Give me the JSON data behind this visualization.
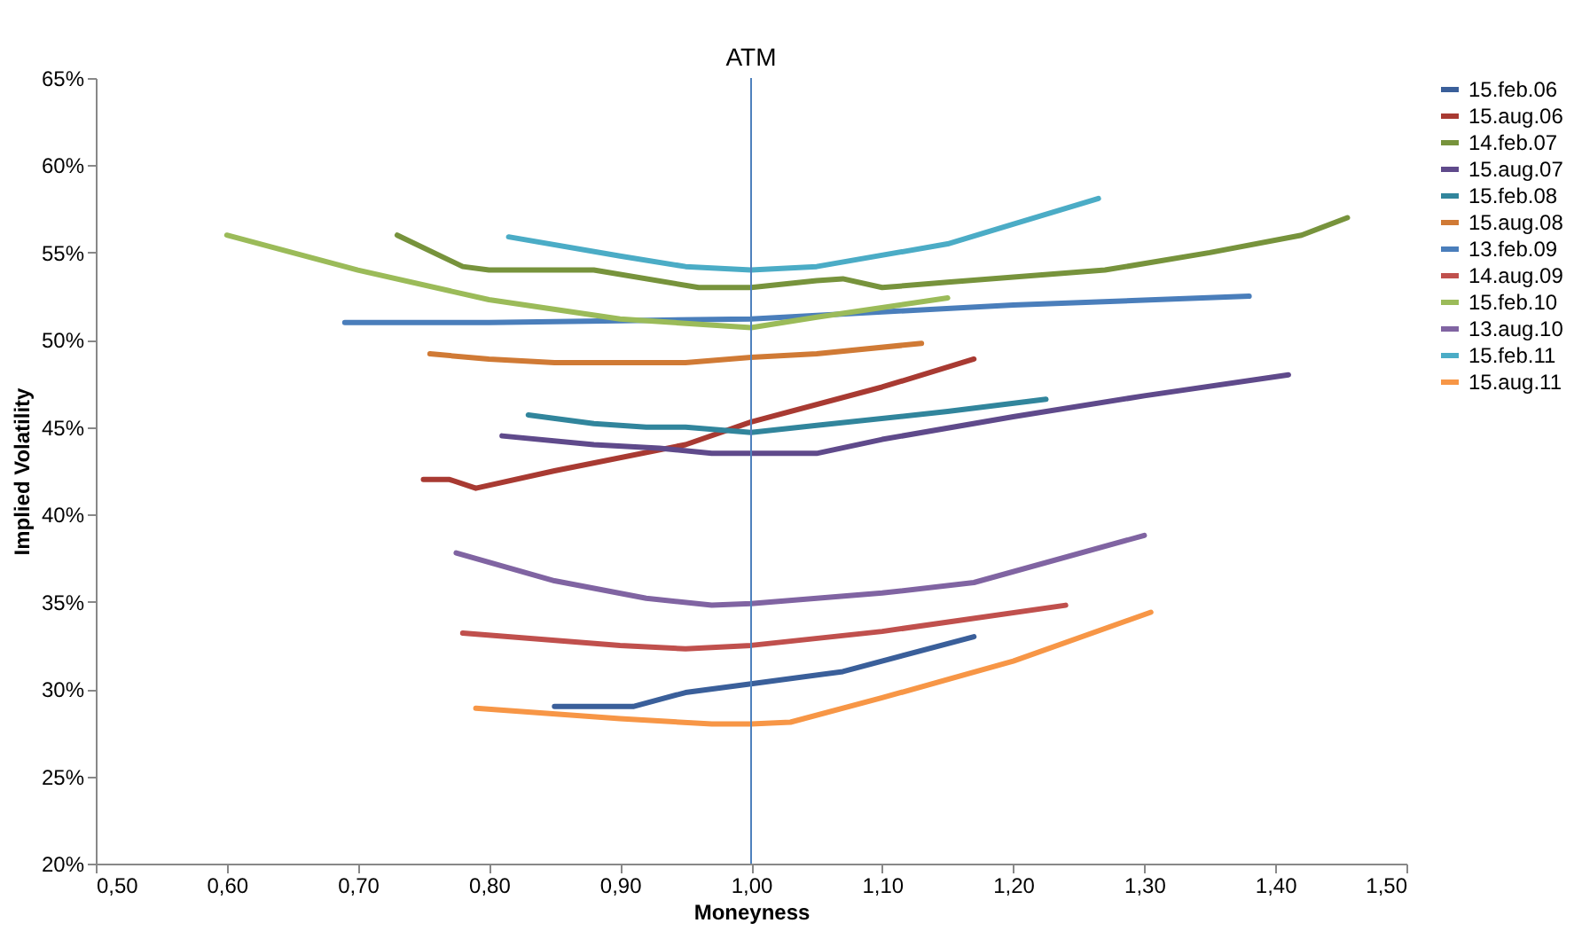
{
  "chart_data": {
    "type": "line",
    "xlabel": "Moneyness",
    "ylabel": "Implied Volatility",
    "legend": "right",
    "grid": false,
    "line_style": "solid",
    "marker": "none",
    "xlim": [
      0.5,
      1.5
    ],
    "xticks": [
      {
        "value": 0.5,
        "label": "0,50"
      },
      {
        "value": 0.6,
        "label": "0,60"
      },
      {
        "value": 0.7,
        "label": "0,70"
      },
      {
        "value": 0.8,
        "label": "0,80"
      },
      {
        "value": 0.9,
        "label": "0,90"
      },
      {
        "value": 1.0,
        "label": "1,00"
      },
      {
        "value": 1.1,
        "label": "1,10"
      },
      {
        "value": 1.2,
        "label": "1,20"
      },
      {
        "value": 1.3,
        "label": "1,30"
      },
      {
        "value": 1.4,
        "label": "1,40"
      },
      {
        "value": 1.5,
        "label": "1,50"
      }
    ],
    "ylim": [
      20,
      65
    ],
    "yticks": [
      {
        "value": 20,
        "label": "20%"
      },
      {
        "value": 25,
        "label": "25%"
      },
      {
        "value": 30,
        "label": "30%"
      },
      {
        "value": 35,
        "label": "35%"
      },
      {
        "value": 40,
        "label": "40%"
      },
      {
        "value": 45,
        "label": "45%"
      },
      {
        "value": 50,
        "label": "50%"
      },
      {
        "value": 55,
        "label": "55%"
      },
      {
        "value": 60,
        "label": "60%"
      },
      {
        "value": 65,
        "label": "65%"
      }
    ],
    "ref_lines": [
      {
        "axis": "x",
        "value": 1.0,
        "label": "ATM",
        "color": "#4f81bd"
      }
    ],
    "series": [
      {
        "name": "15.feb.06",
        "color": "#3a5f9a",
        "x": [
          0.85,
          0.91,
          0.95,
          1.0,
          1.07,
          1.17
        ],
        "values": [
          29,
          29,
          29.8,
          30.3,
          31,
          33
        ]
      },
      {
        "name": "15.aug.06",
        "color": "#a83a32",
        "x": [
          0.75,
          0.77,
          0.79,
          0.85,
          0.95,
          1.0,
          1.1,
          1.17
        ],
        "values": [
          42,
          42,
          41.5,
          42.5,
          44,
          45.3,
          47.3,
          48.9
        ]
      },
      {
        "name": "14.feb.07",
        "color": "#77933c",
        "x": [
          0.73,
          0.78,
          0.8,
          0.88,
          0.96,
          1.0,
          1.05,
          1.07,
          1.1,
          1.15,
          1.27,
          1.35,
          1.42,
          1.455
        ],
        "values": [
          56,
          54.2,
          54,
          54,
          53,
          53,
          53.4,
          53.5,
          53,
          53.3,
          54,
          55,
          56,
          57
        ]
      },
      {
        "name": "15.aug.07",
        "color": "#5f4a8b",
        "x": [
          0.81,
          0.88,
          0.93,
          0.97,
          1.0,
          1.05,
          1.1,
          1.2,
          1.3,
          1.41
        ],
        "values": [
          44.5,
          44,
          43.8,
          43.5,
          43.5,
          43.5,
          44.3,
          45.6,
          46.8,
          48
        ]
      },
      {
        "name": "15.feb.08",
        "color": "#31859c",
        "x": [
          0.83,
          0.88,
          0.92,
          0.95,
          1.0,
          1.05,
          1.15,
          1.225
        ],
        "values": [
          45.7,
          45.2,
          45,
          45,
          44.7,
          45.1,
          45.9,
          46.6
        ]
      },
      {
        "name": "15.aug.08",
        "color": "#d07a35",
        "x": [
          0.755,
          0.8,
          0.85,
          0.95,
          1.0,
          1.05,
          1.13
        ],
        "values": [
          49.2,
          48.9,
          48.7,
          48.7,
          49,
          49.2,
          49.8
        ]
      },
      {
        "name": "13.feb.09",
        "color": "#4a7ebb",
        "x": [
          0.69,
          0.8,
          0.9,
          1.0,
          1.1,
          1.2,
          1.38
        ],
        "values": [
          51,
          51,
          51.1,
          51.2,
          51.6,
          52,
          52.5
        ]
      },
      {
        "name": "14.aug.09",
        "color": "#c0504d",
        "x": [
          0.78,
          0.9,
          0.95,
          1.0,
          1.1,
          1.24
        ],
        "values": [
          33.2,
          32.5,
          32.3,
          32.5,
          33.3,
          34.8
        ]
      },
      {
        "name": "15.feb.10",
        "color": "#9bbb59",
        "x": [
          0.6,
          0.7,
          0.8,
          0.9,
          1.0,
          1.05,
          1.15
        ],
        "values": [
          56,
          54,
          52.3,
          51.2,
          50.7,
          51.3,
          52.4
        ]
      },
      {
        "name": "13.aug.10",
        "color": "#8064a2",
        "x": [
          0.775,
          0.85,
          0.92,
          0.97,
          1.0,
          1.1,
          1.17,
          1.3
        ],
        "values": [
          37.8,
          36.2,
          35.2,
          34.8,
          34.9,
          35.5,
          36.1,
          38.8
        ]
      },
      {
        "name": "15.feb.11",
        "color": "#4bacc6",
        "x": [
          0.815,
          0.9,
          0.95,
          1.0,
          1.05,
          1.15,
          1.265
        ],
        "values": [
          55.9,
          54.8,
          54.2,
          54,
          54.2,
          55.5,
          58.1
        ]
      },
      {
        "name": "15.aug.11",
        "color": "#f79646",
        "x": [
          0.79,
          0.9,
          0.97,
          1.0,
          1.03,
          1.1,
          1.2,
          1.305
        ],
        "values": [
          28.9,
          28.3,
          28,
          28,
          28.1,
          29.5,
          31.6,
          34.4
        ]
      }
    ]
  }
}
